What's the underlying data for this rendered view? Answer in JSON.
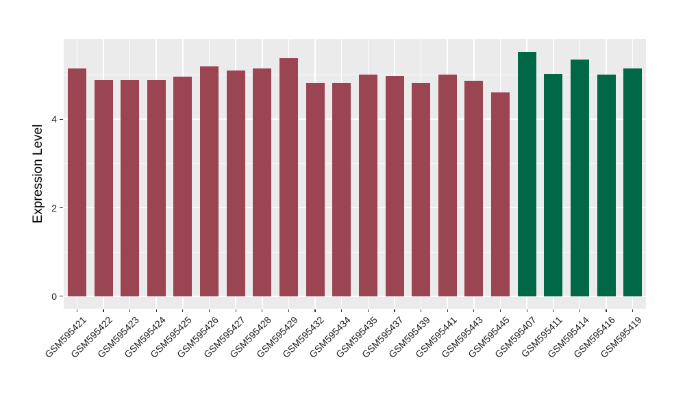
{
  "chart_data": {
    "type": "bar",
    "title": "",
    "xlabel": "",
    "ylabel": "Expression Level",
    "categories": [
      "GSM595421",
      "GSM595422",
      "GSM595423",
      "GSM595424",
      "GSM595425",
      "GSM595426",
      "GSM595427",
      "GSM595428",
      "GSM595429",
      "GSM595432",
      "GSM595434",
      "GSM595435",
      "GSM595437",
      "GSM595439",
      "GSM595441",
      "GSM595443",
      "GSM595445",
      "GSM595407",
      "GSM595411",
      "GSM595414",
      "GSM595416",
      "GSM595419"
    ],
    "values": [
      5.15,
      4.88,
      4.89,
      4.89,
      4.96,
      5.2,
      5.1,
      5.14,
      5.38,
      4.82,
      4.82,
      5.0,
      4.97,
      4.82,
      5.0,
      4.87,
      4.6,
      5.52,
      5.03,
      5.34,
      5.01,
      5.14
    ],
    "groups": [
      "group1",
      "group1",
      "group1",
      "group1",
      "group1",
      "group1",
      "group1",
      "group1",
      "group1",
      "group1",
      "group1",
      "group1",
      "group1",
      "group1",
      "group1",
      "group1",
      "group1",
      "group2",
      "group2",
      "group2",
      "group2",
      "group2"
    ],
    "group_colors": {
      "group1": "#9B4452",
      "group2": "#006747"
    },
    "yticks": [
      0,
      2,
      4
    ],
    "minor_yticks": [
      1,
      3,
      5
    ],
    "ylim": [
      -0.28,
      5.81
    ],
    "legend": "none",
    "grid": true,
    "panel_bg": "#EBEBEB",
    "grid_color": "#FFFFFF",
    "axis_text_color": "#1A1A1A",
    "tick_mark_color": "#333333",
    "bar_width_fraction": 0.7
  }
}
